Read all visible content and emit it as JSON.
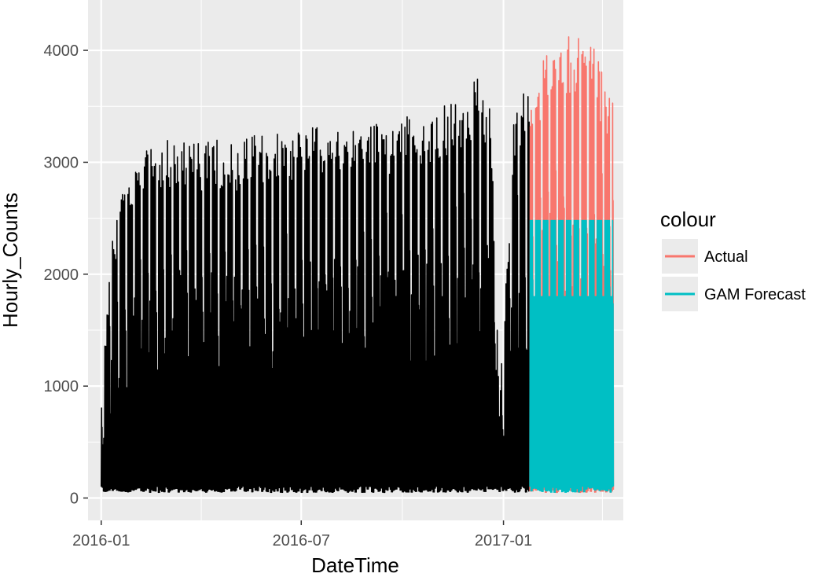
{
  "chart_data": {
    "type": "line",
    "xlabel": "DateTime",
    "ylabel": "Hourly_Counts",
    "x_range": [
      "2015-12-20",
      "2017-04-20"
    ],
    "ylim": [
      -200,
      4450
    ],
    "x_ticks": [
      {
        "date": "2016-01-01",
        "label": "2016-01"
      },
      {
        "date": "2016-07-01",
        "label": "2016-07"
      },
      {
        "date": "2017-01-01",
        "label": "2017-01"
      }
    ],
    "x_minor_ticks": [
      "2016-04-01",
      "2016-10-01",
      "2017-04-01"
    ],
    "y_ticks": [
      0,
      1000,
      2000,
      3000,
      4000
    ],
    "grid": true,
    "panel_background": "#ebebeb",
    "legend": {
      "title": "colour",
      "position": "right",
      "entries": [
        {
          "label": "Actual",
          "color": "#f8766d"
        },
        {
          "label": "GAM Forecast",
          "color": "#00bfc4"
        }
      ]
    },
    "series": [
      {
        "role": "history",
        "color": "#000000",
        "start": "2016-01-01",
        "end": "2017-01-24",
        "daily_peaks_sample": [
          {
            "date": "2016-01-01",
            "value": 900
          },
          {
            "date": "2016-01-10",
            "value": 2200
          },
          {
            "date": "2016-01-20",
            "value": 2700
          },
          {
            "date": "2016-02-01",
            "value": 2900
          },
          {
            "date": "2016-02-15",
            "value": 3100
          },
          {
            "date": "2016-03-01",
            "value": 3150
          },
          {
            "date": "2016-03-15",
            "value": 3150
          },
          {
            "date": "2016-04-01",
            "value": 3100
          },
          {
            "date": "2016-04-15",
            "value": 3150
          },
          {
            "date": "2016-05-01",
            "value": 3100
          },
          {
            "date": "2016-05-15",
            "value": 3200
          },
          {
            "date": "2016-06-01",
            "value": 3200
          },
          {
            "date": "2016-06-15",
            "value": 3200
          },
          {
            "date": "2016-07-01",
            "value": 3250
          },
          {
            "date": "2016-07-15",
            "value": 3300
          },
          {
            "date": "2016-08-01",
            "value": 3300
          },
          {
            "date": "2016-08-15",
            "value": 3250
          },
          {
            "date": "2016-09-01",
            "value": 3300
          },
          {
            "date": "2016-09-15",
            "value": 3250
          },
          {
            "date": "2016-10-01",
            "value": 3350
          },
          {
            "date": "2016-10-15",
            "value": 3350
          },
          {
            "date": "2016-11-01",
            "value": 3400
          },
          {
            "date": "2016-11-15",
            "value": 3500
          },
          {
            "date": "2016-12-01",
            "value": 3600
          },
          {
            "date": "2016-12-10",
            "value": 3700
          },
          {
            "date": "2016-12-20",
            "value": 3500
          },
          {
            "date": "2016-12-28",
            "value": 800
          },
          {
            "date": "2017-01-10",
            "value": 3300
          },
          {
            "date": "2017-01-20",
            "value": 3600
          }
        ],
        "base_low": 50
      },
      {
        "name": "Actual",
        "color": "#f8766d",
        "start": "2017-01-25",
        "end": "2017-04-10",
        "daily_peaks_sample": [
          {
            "date": "2017-01-25",
            "value": 3500
          },
          {
            "date": "2017-02-05",
            "value": 3900
          },
          {
            "date": "2017-02-15",
            "value": 4000
          },
          {
            "date": "2017-03-01",
            "value": 4050
          },
          {
            "date": "2017-03-15",
            "value": 4100
          },
          {
            "date": "2017-03-20",
            "value": 4280
          },
          {
            "date": "2017-04-01",
            "value": 3700
          },
          {
            "date": "2017-04-08",
            "value": 3600
          }
        ],
        "base_low": 50
      },
      {
        "name": "GAM Forecast",
        "color": "#00bfc4",
        "start": "2017-01-25",
        "end": "2017-04-10",
        "weekday_peak": 2480,
        "weekend_peak": 1800,
        "base_low": 50
      }
    ]
  }
}
